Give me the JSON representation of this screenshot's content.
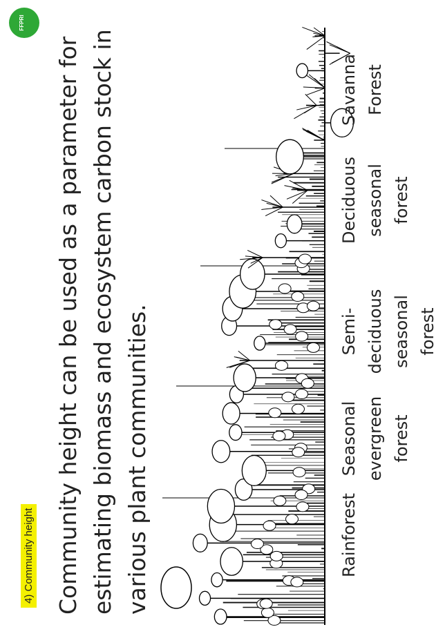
{
  "header": {
    "tag": "4) Community height",
    "logo": "FFPRI"
  },
  "body": {
    "lines": [
      "Community height can be used as a parameter for",
      "estimating biomass and ecosystem carbon stock in",
      "various plant communities."
    ]
  },
  "figure": {
    "labels": [
      [
        "Rainforest"
      ],
      [
        "Seasonal",
        "evergreen",
        "forest"
      ],
      [
        "Semi-",
        "deciduous",
        "seasonal",
        "forest"
      ],
      [
        "Deciduous",
        "seasonal",
        "forest"
      ],
      [
        "Savanna",
        "Forest"
      ]
    ]
  }
}
